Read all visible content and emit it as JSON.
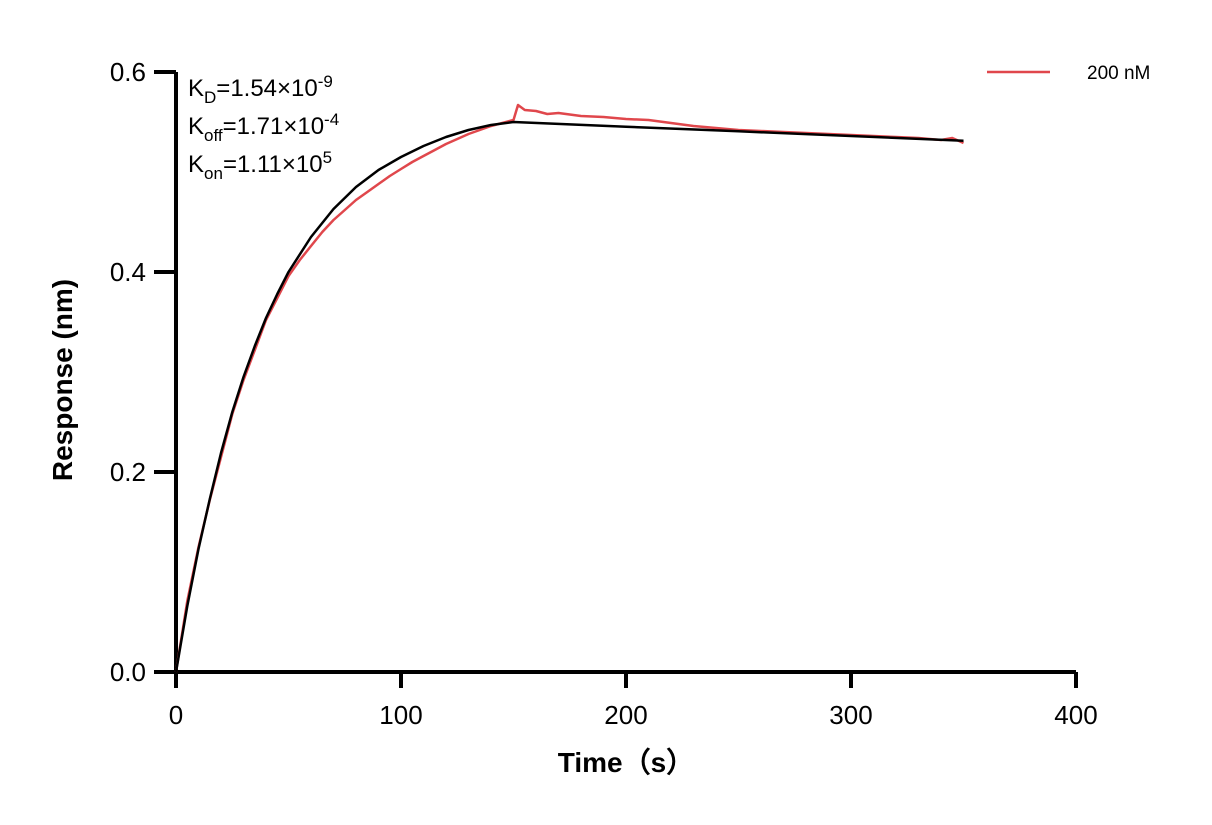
{
  "chart_data": {
    "type": "line",
    "xlabel": "Time（s）",
    "ylabel": "Response (nm)",
    "xlim": [
      0,
      400
    ],
    "ylim": [
      0,
      0.6
    ],
    "xticks": [
      0,
      100,
      200,
      300,
      400
    ],
    "yticks": [
      "0.0",
      "0.2",
      "0.4",
      "0.6"
    ],
    "grid": false,
    "legend_position": "top-right",
    "annotations": [
      {
        "base": "K",
        "sub": "D",
        "text": "=1.54×10",
        "sup": "-9"
      },
      {
        "base": "K",
        "sub": "off",
        "text": "=1.71×10",
        "sup": "-4"
      },
      {
        "base": "K",
        "sub": "on",
        "text": "=1.11×10",
        "sup": "5"
      }
    ],
    "series": [
      {
        "name": "200 nM",
        "color": "#e0474c",
        "x": [
          0,
          5,
          10,
          15,
          20,
          25,
          30,
          35,
          40,
          45,
          50,
          55,
          60,
          65,
          70,
          75,
          80,
          85,
          90,
          95,
          100,
          105,
          110,
          115,
          120,
          125,
          130,
          135,
          140,
          145,
          150,
          152,
          155,
          160,
          165,
          170,
          180,
          190,
          200,
          210,
          220,
          230,
          240,
          250,
          260,
          270,
          280,
          290,
          300,
          310,
          320,
          330,
          340,
          345,
          350
        ],
        "y": [
          0,
          0.071,
          0.125,
          0.172,
          0.215,
          0.258,
          0.292,
          0.322,
          0.352,
          0.374,
          0.396,
          0.412,
          0.426,
          0.44,
          0.452,
          0.462,
          0.472,
          0.48,
          0.488,
          0.496,
          0.503,
          0.51,
          0.516,
          0.522,
          0.528,
          0.533,
          0.538,
          0.542,
          0.546,
          0.549,
          0.552,
          0.567,
          0.562,
          0.561,
          0.558,
          0.559,
          0.556,
          0.555,
          0.553,
          0.552,
          0.549,
          0.546,
          0.544,
          0.542,
          0.541,
          0.54,
          0.539,
          0.538,
          0.537,
          0.536,
          0.535,
          0.534,
          0.532,
          0.534,
          0.529
        ]
      },
      {
        "color": "#000000",
        "fit": true,
        "x": [
          0,
          5,
          10,
          15,
          20,
          25,
          30,
          35,
          40,
          45,
          50,
          60,
          70,
          80,
          90,
          100,
          110,
          120,
          130,
          140,
          150,
          200,
          250,
          300,
          350
        ],
        "y": [
          0,
          0.066,
          0.123,
          0.173,
          0.219,
          0.26,
          0.295,
          0.326,
          0.354,
          0.378,
          0.4,
          0.435,
          0.463,
          0.485,
          0.502,
          0.515,
          0.526,
          0.535,
          0.542,
          0.547,
          0.55,
          0.5453,
          0.5407,
          0.536,
          0.5313
        ]
      }
    ]
  }
}
